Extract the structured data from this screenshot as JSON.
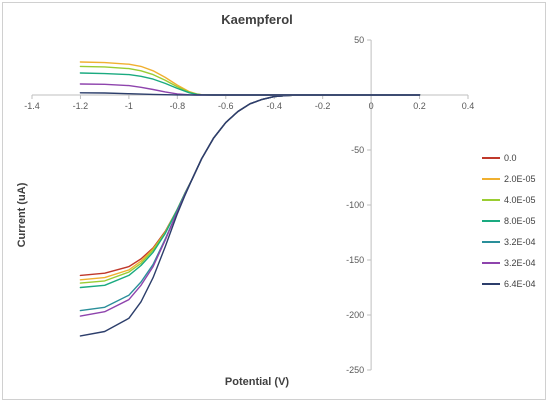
{
  "chart_data": {
    "type": "line",
    "title": "Kaempferol",
    "xlabel": "Potential (V)",
    "ylabel": "Current (uA)",
    "xlim": [
      -1.4,
      0.4
    ],
    "ylim": [
      -250,
      50
    ],
    "x_ticks": [
      -1.4,
      -1.2,
      -1.0,
      -0.8,
      -0.6,
      -0.4,
      -0.2,
      0,
      0.2,
      0.4
    ],
    "y_ticks": [
      50,
      0,
      -50,
      -100,
      -150,
      -200,
      -250
    ],
    "grid": false,
    "legend_position": "right",
    "series": [
      {
        "name": "0.0",
        "color": "#c0392b",
        "x": [
          -1.2,
          -1.1,
          -1.0,
          -0.95,
          -0.9,
          -0.85,
          -0.8,
          -0.77,
          -0.74,
          -0.7,
          -0.65,
          -0.6,
          -0.55,
          -0.5,
          -0.45,
          -0.4,
          -0.35,
          -0.3,
          -0.2,
          0,
          0.2
        ],
        "y": [
          -164,
          -162,
          -156,
          -149,
          -139,
          -124,
          -104,
          -90,
          -77,
          -58,
          -39,
          -25,
          -15,
          -8,
          -4,
          -1.5,
          -0.5,
          0,
          0,
          0,
          0
        ]
      },
      {
        "name": "2.0E-05",
        "color": "#f0b030",
        "x": [
          -1.2,
          -1.1,
          -1.0,
          -0.95,
          -0.9,
          -0.85,
          -0.8,
          -0.77,
          -0.74,
          -0.7,
          -0.65,
          -0.6,
          -0.55,
          -0.5,
          -0.45,
          -0.4,
          -0.35,
          -0.3,
          -0.2,
          0,
          0.2
        ],
        "y": [
          -168,
          -166,
          -159,
          -151,
          -140,
          -125,
          -104,
          -90,
          -77,
          -58,
          -39,
          -25,
          -15,
          -8,
          -4,
          -1.5,
          -0.5,
          0,
          0,
          0,
          0
        ]
      },
      {
        "name": "4.0E-05",
        "color": "#9acd32",
        "x": [
          -1.2,
          -1.1,
          -1.0,
          -0.95,
          -0.9,
          -0.85,
          -0.8,
          -0.77,
          -0.74,
          -0.7,
          -0.65,
          -0.6,
          -0.55,
          -0.5,
          -0.45,
          -0.4,
          -0.35,
          -0.3,
          -0.2,
          0,
          0.2
        ],
        "y": [
          -171,
          -169,
          -161,
          -153,
          -141,
          -125,
          -104,
          -90,
          -77,
          -58,
          -39,
          -25,
          -15,
          -8,
          -4,
          -1.5,
          -0.5,
          0,
          0,
          0,
          0
        ]
      },
      {
        "name": "8.0E-05",
        "color": "#1aaa80",
        "x": [
          -1.2,
          -1.1,
          -1.0,
          -0.95,
          -0.9,
          -0.85,
          -0.8,
          -0.77,
          -0.74,
          -0.7,
          -0.65,
          -0.6,
          -0.55,
          -0.5,
          -0.45,
          -0.4,
          -0.35,
          -0.3,
          -0.2,
          0,
          0.2
        ],
        "y": [
          -175,
          -173,
          -164,
          -155,
          -143,
          -126,
          -104,
          -90,
          -77,
          -58,
          -39,
          -25,
          -15,
          -8,
          -4,
          -1.5,
          -0.5,
          0,
          0,
          0,
          0
        ]
      },
      {
        "name": "3.2E-04",
        "color": "#2a8f9a",
        "x": [
          -1.2,
          -1.1,
          -1.0,
          -0.95,
          -0.9,
          -0.85,
          -0.8,
          -0.77,
          -0.74,
          -0.7,
          -0.65,
          -0.6,
          -0.55,
          -0.5,
          -0.45,
          -0.4,
          -0.35,
          -0.3,
          -0.2,
          0,
          0.2
        ],
        "y": [
          -196,
          -193,
          -182,
          -170,
          -154,
          -131,
          -106,
          -91,
          -77,
          -58,
          -39,
          -25,
          -15,
          -8,
          -4,
          -1.5,
          -0.5,
          0,
          0,
          0,
          0
        ]
      },
      {
        "name": "3.2E-04",
        "color": "#8e44ad",
        "x": [
          -1.2,
          -1.1,
          -1.0,
          -0.95,
          -0.9,
          -0.85,
          -0.8,
          -0.77,
          -0.74,
          -0.7,
          -0.65,
          -0.6,
          -0.55,
          -0.5,
          -0.45,
          -0.4,
          -0.35,
          -0.3,
          -0.2,
          0,
          0.2
        ],
        "y": [
          -201,
          -197,
          -186,
          -173,
          -156,
          -132,
          -106,
          -91,
          -77,
          -58,
          -39,
          -25,
          -15,
          -8,
          -4,
          -1.5,
          -0.5,
          0,
          0,
          0,
          0
        ]
      },
      {
        "name": "6.4E-04",
        "color": "#2c3e6b",
        "x": [
          -1.2,
          -1.1,
          -1.0,
          -0.95,
          -0.9,
          -0.85,
          -0.8,
          -0.77,
          -0.74,
          -0.7,
          -0.65,
          -0.6,
          -0.55,
          -0.5,
          -0.45,
          -0.4,
          -0.35,
          -0.3,
          -0.2,
          0,
          0.2
        ],
        "y": [
          -219,
          -215,
          -203,
          -188,
          -166,
          -138,
          -108,
          -92,
          -77,
          -58,
          -39,
          -25,
          -15,
          -8,
          -4,
          -1.5,
          -0.5,
          0,
          0,
          0,
          0
        ]
      },
      {
        "name": "",
        "color": "#f0b030",
        "x": [
          -1.2,
          -1.1,
          -1.0,
          -0.95,
          -0.9,
          -0.85,
          -0.8,
          -0.75,
          -0.72,
          -0.7,
          -0.65,
          -0.6,
          -0.4,
          -0.2,
          0,
          0.2
        ],
        "y": [
          30,
          29.5,
          28,
          26,
          22,
          16,
          9,
          3,
          1,
          0.3,
          0,
          0,
          0,
          0,
          0,
          0
        ]
      },
      {
        "name": "",
        "color": "#9acd32",
        "x": [
          -1.2,
          -1.1,
          -1.0,
          -0.95,
          -0.9,
          -0.85,
          -0.8,
          -0.75,
          -0.72,
          -0.7,
          -0.65,
          -0.6,
          -0.4,
          -0.2,
          0,
          0.2
        ],
        "y": [
          26,
          25.5,
          24,
          22,
          18.5,
          13.5,
          7.5,
          2.5,
          0.8,
          0.2,
          0,
          0,
          0,
          0,
          0,
          0
        ]
      },
      {
        "name": "",
        "color": "#1aaa80",
        "x": [
          -1.2,
          -1.1,
          -1.0,
          -0.95,
          -0.9,
          -0.85,
          -0.8,
          -0.75,
          -0.72,
          -0.7,
          -0.65,
          -0.6,
          -0.4,
          -0.2,
          0,
          0.2
        ],
        "y": [
          20,
          19.5,
          18.5,
          17,
          14.5,
          10.5,
          6,
          2,
          0.6,
          0.2,
          0,
          0,
          0,
          0,
          0,
          0
        ]
      },
      {
        "name": "",
        "color": "#8e44ad",
        "x": [
          -1.2,
          -1.1,
          -1.0,
          -0.95,
          -0.9,
          -0.85,
          -0.8,
          -0.75,
          -0.72,
          -0.7,
          -0.65,
          -0.6,
          -0.4,
          -0.2,
          0,
          0.2
        ],
        "y": [
          10,
          9.7,
          8.5,
          7,
          5,
          2.8,
          1,
          0.2,
          0,
          0,
          0,
          0,
          0,
          0,
          0,
          0
        ]
      },
      {
        "name": "",
        "color": "#2c3e6b",
        "x": [
          -1.2,
          -1.1,
          -1.0,
          -0.9,
          -0.8,
          -0.7,
          -0.4,
          -0.2,
          0,
          0.2
        ],
        "y": [
          2,
          1.8,
          1.2,
          0.5,
          0.1,
          0,
          0,
          0,
          0,
          0
        ]
      }
    ],
    "legend_entries": [
      {
        "name": "0.0",
        "color": "#c0392b"
      },
      {
        "name": "2.0E-05",
        "color": "#f0b030"
      },
      {
        "name": "4.0E-05",
        "color": "#9acd32"
      },
      {
        "name": "8.0E-05",
        "color": "#1aaa80"
      },
      {
        "name": "3.2E-04",
        "color": "#2a8f9a"
      },
      {
        "name": "3.2E-04",
        "color": "#8e44ad"
      },
      {
        "name": "6.4E-04",
        "color": "#2c3e6b"
      }
    ]
  }
}
